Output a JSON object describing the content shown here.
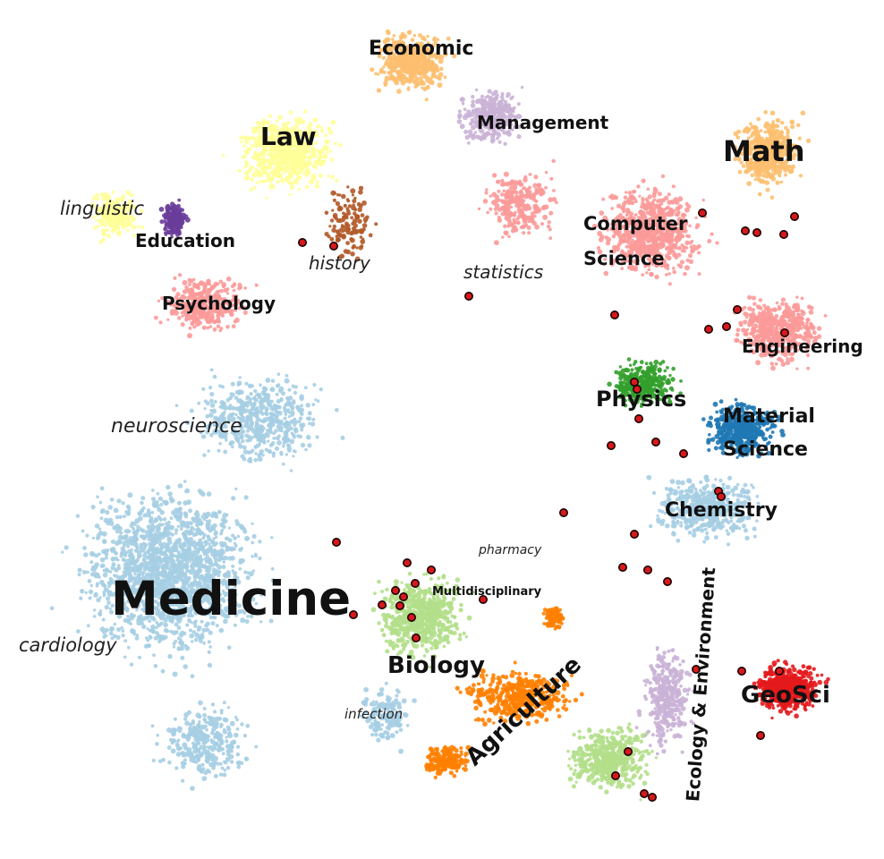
{
  "chart_data": {
    "type": "scatter",
    "title": "",
    "xlabel": "",
    "ylabel": "",
    "grid": false,
    "legend": "none",
    "fields": [
      {
        "name": "Math",
        "color": "#fdbf6f"
      },
      {
        "name": "Economic",
        "color": "#fdbf6f"
      },
      {
        "name": "Management",
        "color": "#cab2d6"
      },
      {
        "name": "Law",
        "color": "#ffff99"
      },
      {
        "name": "Education",
        "color": "#6a3d9a"
      },
      {
        "name": "Psychology",
        "color": "#fb9a99"
      },
      {
        "name": "Computer Science",
        "color": "#fb9a99"
      },
      {
        "name": "Engineering",
        "color": "#fb9a99"
      },
      {
        "name": "Physics",
        "color": "#33a02c"
      },
      {
        "name": "Material Science",
        "color": "#1f78b4"
      },
      {
        "name": "Chemistry",
        "color": "#a6cee3"
      },
      {
        "name": "Medicine",
        "color": "#a6cee3"
      },
      {
        "name": "Biology",
        "color": "#b2df8a"
      },
      {
        "name": "Agriculture",
        "color": "#ff7f00"
      },
      {
        "name": "Ecology & Environment",
        "color": "#cab2d6"
      },
      {
        "name": "GeoSci",
        "color": "#e31a1c"
      },
      {
        "name": "history",
        "color": "#b15928"
      }
    ],
    "highlight_color": "#d7191c",
    "labels": {
      "economic": "Economic",
      "management": "Management",
      "law": "Law",
      "math": "Math",
      "linguistic": "linguistic",
      "education": "Education",
      "history": "history",
      "statistics": "statistics",
      "computer_science_1": "Computer",
      "computer_science_2": "Science",
      "psychology": "Psychology",
      "engineering": "Engineering",
      "physics": "Physics",
      "material_science_1": "Material",
      "material_science_2": "Science",
      "neuroscience": "neuroscience",
      "chemistry": "Chemistry",
      "pharmacy": "pharmacy",
      "medicine": "Medicine",
      "multidisciplinary": "Multidisciplinary",
      "cardiology": "cardiology",
      "biology": "Biology",
      "agriculture": "Agriculture",
      "ecology_environment": "Ecology & Environment",
      "geosci": "GeoSci",
      "infection": "infection"
    }
  }
}
